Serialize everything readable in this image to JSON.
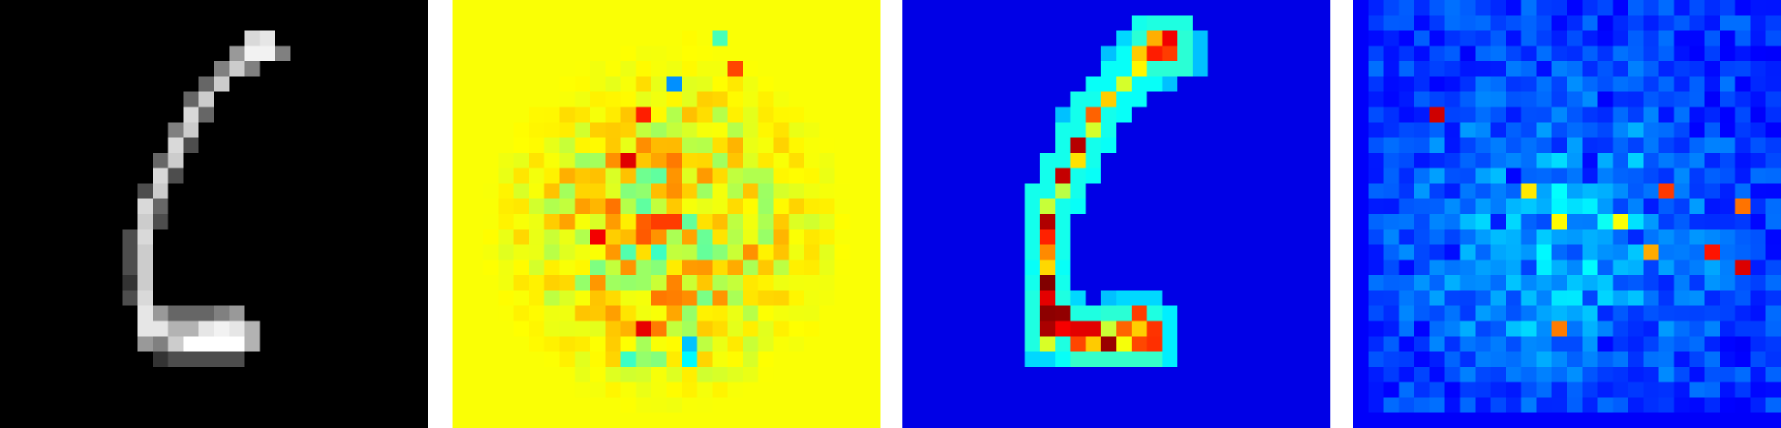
{
  "figure": {
    "grid": 28,
    "panels": [
      {
        "name": "input-image",
        "colormap": "gray"
      },
      {
        "name": "signed-attribution-heatmap",
        "colormap": "jet"
      },
      {
        "name": "absolute-attribution-heatmap",
        "colormap": "jet"
      },
      {
        "name": "noisy-attribution-heatmap",
        "colormap": "jet"
      }
    ],
    "colors": {
      "background": "#ffffff",
      "panel0_bg": "#000000",
      "panel1_bg": "#a8ff50",
      "panel2_bg": "#00009b",
      "panel3_bg": "#0000cc"
    }
  }
}
